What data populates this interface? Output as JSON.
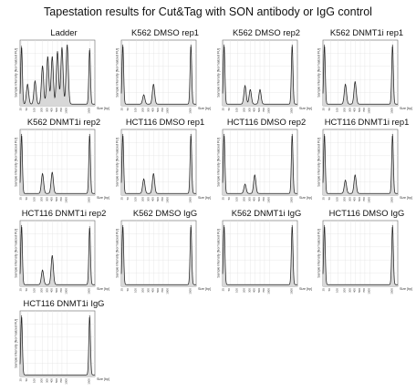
{
  "title": "Tapestation results for Cut&Tag with SON antibody or IgG control",
  "axis": {
    "ylabel": "Sample Intensity [Normalized FU]",
    "xlabel": "Size [bp]",
    "ticks": [
      "25",
      "50",
      "100",
      "200",
      "300",
      "400",
      "500",
      "700",
      "1000",
      "1500"
    ]
  },
  "chart_data": [
    {
      "type": "line",
      "title": "Ladder",
      "peaks": [
        {
          "x": 25,
          "y": 0.88
        },
        {
          "x": 50,
          "y": 0.3
        },
        {
          "x": 100,
          "y": 0.35
        },
        {
          "x": 200,
          "y": 0.58
        },
        {
          "x": 300,
          "y": 0.72
        },
        {
          "x": 400,
          "y": 0.72
        },
        {
          "x": 500,
          "y": 0.8
        },
        {
          "x": 700,
          "y": 0.86
        },
        {
          "x": 1000,
          "y": 0.9
        },
        {
          "x": 1500,
          "y": 0.84
        }
      ]
    },
    {
      "type": "line",
      "title": "K562 DMSO rep1",
      "peaks": [
        {
          "x": 25,
          "y": 0.9
        },
        {
          "x": 200,
          "y": 0.14
        },
        {
          "x": 400,
          "y": 0.3
        },
        {
          "x": 1500,
          "y": 0.9
        }
      ]
    },
    {
      "type": "line",
      "title": "K562 DMSO rep2",
      "peaks": [
        {
          "x": 25,
          "y": 0.9
        },
        {
          "x": 200,
          "y": 0.28
        },
        {
          "x": 300,
          "y": 0.22
        },
        {
          "x": 500,
          "y": 0.22
        },
        {
          "x": 1500,
          "y": 0.9
        }
      ]
    },
    {
      "type": "line",
      "title": "K562 DNMT1i rep1",
      "peaks": [
        {
          "x": 25,
          "y": 0.9
        },
        {
          "x": 200,
          "y": 0.3
        },
        {
          "x": 400,
          "y": 0.34
        },
        {
          "x": 1500,
          "y": 0.9
        }
      ]
    },
    {
      "type": "line",
      "title": "K562 DNMT1i rep2",
      "peaks": [
        {
          "x": 25,
          "y": 0.9
        },
        {
          "x": 200,
          "y": 0.3
        },
        {
          "x": 400,
          "y": 0.32
        },
        {
          "x": 1500,
          "y": 0.9
        }
      ]
    },
    {
      "type": "line",
      "title": "HCT116 DMSO rep1",
      "peaks": [
        {
          "x": 25,
          "y": 0.9
        },
        {
          "x": 200,
          "y": 0.22
        },
        {
          "x": 400,
          "y": 0.3
        },
        {
          "x": 1500,
          "y": 0.9
        }
      ]
    },
    {
      "type": "line",
      "title": "HCT116 DMSO rep2",
      "peaks": [
        {
          "x": 25,
          "y": 0.9
        },
        {
          "x": 200,
          "y": 0.14
        },
        {
          "x": 400,
          "y": 0.28
        },
        {
          "x": 1500,
          "y": 0.9
        }
      ]
    },
    {
      "type": "line",
      "title": "HCT116 DNMT1i rep1",
      "peaks": [
        {
          "x": 25,
          "y": 0.9
        },
        {
          "x": 200,
          "y": 0.2
        },
        {
          "x": 400,
          "y": 0.28
        },
        {
          "x": 1500,
          "y": 0.9
        }
      ]
    },
    {
      "type": "line",
      "title": "HCT116 DNMT1i rep2",
      "peaks": [
        {
          "x": 25,
          "y": 0.9
        },
        {
          "x": 200,
          "y": 0.22
        },
        {
          "x": 400,
          "y": 0.44
        },
        {
          "x": 1500,
          "y": 0.88
        }
      ]
    },
    {
      "type": "line",
      "title": "K562 DMSO IgG",
      "peaks": [
        {
          "x": 25,
          "y": 0.9
        },
        {
          "x": 1500,
          "y": 0.9
        }
      ]
    },
    {
      "type": "line",
      "title": "K562 DNMT1i IgG",
      "peaks": [
        {
          "x": 25,
          "y": 0.9
        },
        {
          "x": 1500,
          "y": 0.9
        }
      ]
    },
    {
      "type": "line",
      "title": "HCT116 DMSO IgG",
      "peaks": [
        {
          "x": 25,
          "y": 0.9
        },
        {
          "x": 1500,
          "y": 0.9
        }
      ]
    },
    {
      "type": "line",
      "title": "HCT116 DNMT1i IgG",
      "peaks": [
        {
          "x": 25,
          "y": 0.9
        },
        {
          "x": 1500,
          "y": 0.9
        }
      ]
    }
  ]
}
